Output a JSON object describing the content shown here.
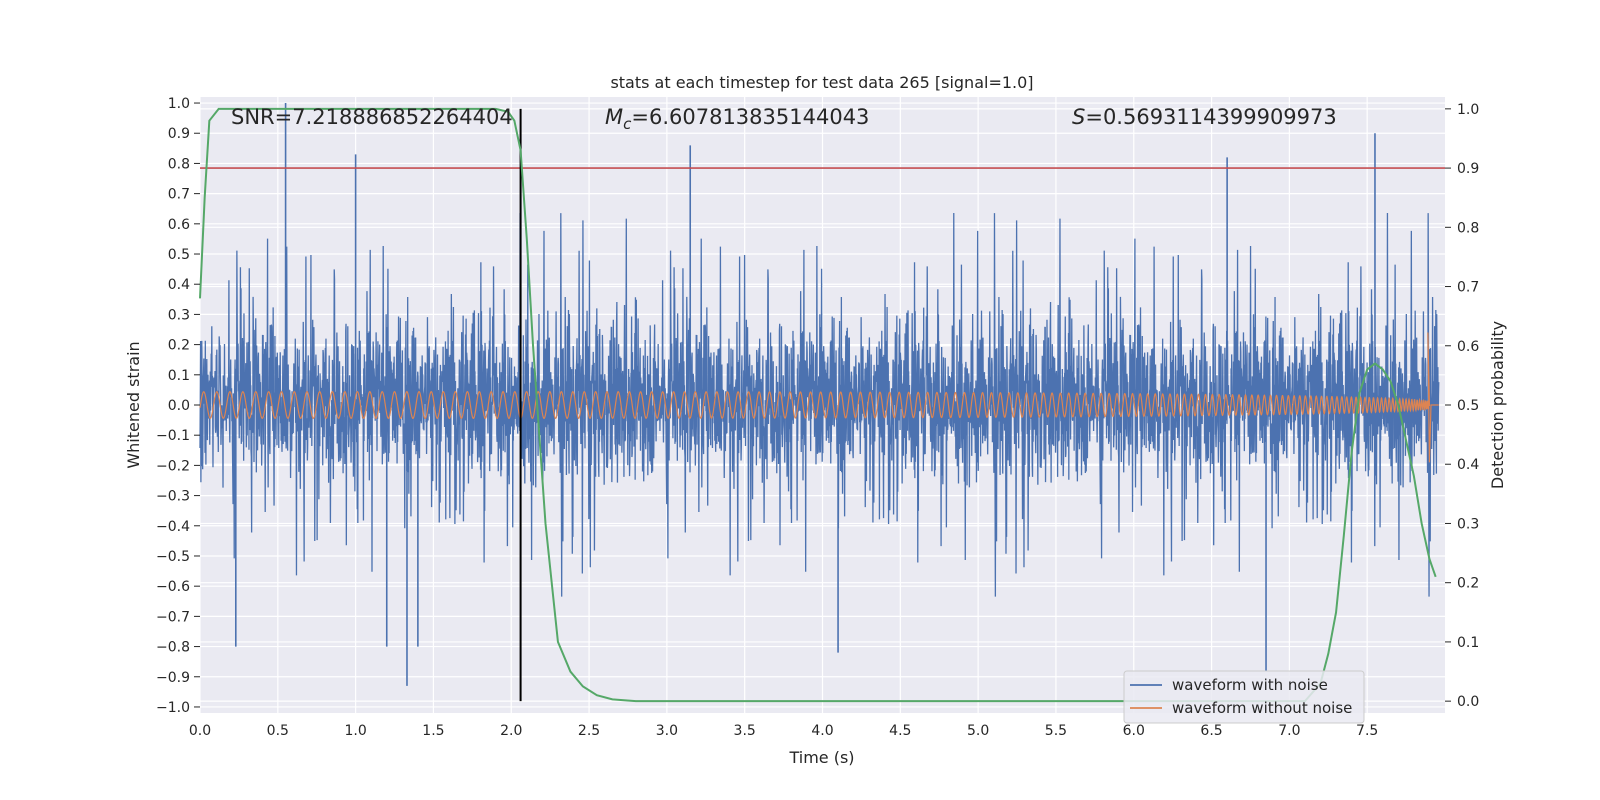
{
  "chart_data": {
    "type": "line",
    "title": "stats at each timestep for test data 265 [signal=1.0]",
    "xlabel": "Time (s)",
    "ylabel": "Whitened strain",
    "y2label": "Detection probability",
    "xlim": [
      0.0,
      8.0
    ],
    "ylim": [
      -1.02,
      1.02
    ],
    "y2lim": [
      -0.02,
      1.02
    ],
    "x_ticks": [
      "0.0",
      "0.5",
      "1.0",
      "1.5",
      "2.0",
      "2.5",
      "3.0",
      "3.5",
      "4.0",
      "4.5",
      "5.0",
      "5.5",
      "6.0",
      "6.5",
      "7.0",
      "7.5"
    ],
    "x_tick_values": [
      0.0,
      0.5,
      1.0,
      1.5,
      2.0,
      2.5,
      3.0,
      3.5,
      4.0,
      4.5,
      5.0,
      5.5,
      6.0,
      6.5,
      7.0,
      7.5
    ],
    "y_ticks": [
      "1.0",
      "0.9",
      "0.8",
      "0.7",
      "0.6",
      "0.5",
      "0.4",
      "0.3",
      "0.2",
      "0.1",
      "0.0",
      "−0.1",
      "−0.2",
      "−0.3",
      "−0.4",
      "−0.5",
      "−0.6",
      "−0.7",
      "−0.8",
      "−0.9",
      "−1.0"
    ],
    "y_tick_values": [
      1.0,
      0.9,
      0.8,
      0.7,
      0.6,
      0.5,
      0.4,
      0.3,
      0.2,
      0.1,
      0.0,
      -0.1,
      -0.2,
      -0.3,
      -0.4,
      -0.5,
      -0.6,
      -0.7,
      -0.8,
      -0.9,
      -1.0
    ],
    "y2_ticks": [
      "1.0",
      "0.9",
      "0.8",
      "0.7",
      "0.6",
      "0.5",
      "0.4",
      "0.3",
      "0.2",
      "0.1",
      "0.0"
    ],
    "y2_tick_values": [
      1.0,
      0.9,
      0.8,
      0.7,
      0.6,
      0.5,
      0.4,
      0.3,
      0.2,
      0.1,
      0.0
    ],
    "annotations": {
      "snr_label": "SNR=7.218886852264404",
      "mc_symbol": "M",
      "mc_subscript": "c",
      "mc_value": "=6.607813835144043",
      "s_symbol": "S",
      "s_value": "=0.5693114399909973"
    },
    "threshold": {
      "value": 0.9,
      "axis": "right",
      "color": "#c44e52"
    },
    "marker_time": 2.06,
    "grid": true,
    "legend_position": "bottom-right",
    "series": [
      {
        "name": "waveform with noise",
        "axis": "left",
        "color": "#4c72b0",
        "description_kind": "noise",
        "x_range": [
          0.0,
          7.96
        ],
        "envelope": [
          -0.55,
          0.6
        ],
        "peaks": [
          {
            "x": 0.55,
            "y": 1.0
          },
          {
            "x": 1.0,
            "y": 0.83
          },
          {
            "x": 3.15,
            "y": 0.86
          },
          {
            "x": 6.6,
            "y": 0.82
          },
          {
            "x": 7.55,
            "y": 0.9
          },
          {
            "x": 1.33,
            "y": -0.93
          },
          {
            "x": 0.23,
            "y": -0.8
          },
          {
            "x": 4.1,
            "y": -0.82
          },
          {
            "x": 6.85,
            "y": -0.88
          },
          {
            "x": 1.2,
            "y": -0.8
          },
          {
            "x": 1.4,
            "y": -0.8
          }
        ]
      },
      {
        "name": "waveform without noise",
        "axis": "left",
        "color": "#dd8452",
        "description_kind": "chirp",
        "x_range": [
          0.0,
          7.96
        ],
        "amplitude_start": 0.01,
        "amplitude_end_peak": 0.24,
        "amplitude_end_trough": -0.19,
        "merger_time": 7.9
      },
      {
        "name": "Detection probability",
        "axis": "right",
        "color": "#55a868",
        "x": [
          0.0,
          0.03,
          0.06,
          0.12,
          0.2,
          0.5,
          1.0,
          1.5,
          1.9,
          1.98,
          2.02,
          2.06,
          2.1,
          2.14,
          2.18,
          2.22,
          2.26,
          2.3,
          2.38,
          2.46,
          2.55,
          2.65,
          2.8,
          3.0,
          4.0,
          5.0,
          6.0,
          6.8,
          7.1,
          7.2,
          7.25,
          7.3,
          7.35,
          7.4,
          7.45,
          7.5,
          7.55,
          7.6,
          7.65,
          7.7,
          7.75,
          7.8,
          7.85,
          7.9,
          7.94
        ],
        "y": [
          0.68,
          0.85,
          0.98,
          1.0,
          1.0,
          1.0,
          1.0,
          1.0,
          1.0,
          0.995,
          0.98,
          0.93,
          0.78,
          0.6,
          0.45,
          0.3,
          0.2,
          0.1,
          0.05,
          0.025,
          0.01,
          0.003,
          0.0,
          0.0,
          0.0,
          0.0,
          0.0,
          0.0,
          0.0,
          0.03,
          0.08,
          0.15,
          0.28,
          0.42,
          0.52,
          0.56,
          0.57,
          0.56,
          0.54,
          0.5,
          0.44,
          0.38,
          0.3,
          0.24,
          0.21
        ]
      }
    ]
  }
}
